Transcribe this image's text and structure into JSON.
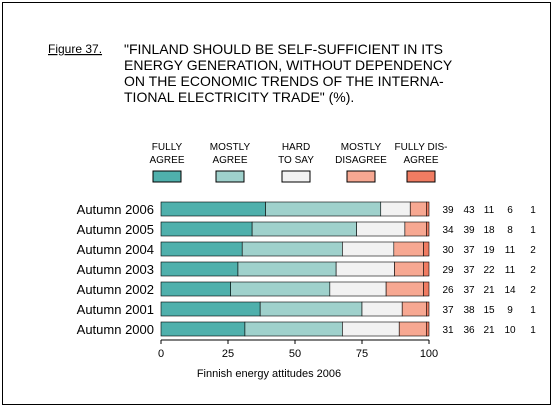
{
  "figure_label": "Figure 37.",
  "title_lines": [
    "\"FINLAND SHOULD BE SELF-SUFFICIENT IN ITS",
    "ENERGY GENERATION, WITHOUT DEPENDENCY",
    "ON THE ECONOMIC TRENDS OF THE INTERNA-",
    "TIONAL ELECTRICITY TRADE\" (%)."
  ],
  "colors": {
    "fully_agree": "#4fb0ac",
    "mostly_agree": "#9fd1cc",
    "hard_to_say": "#f2f2f2",
    "mostly_disagree": "#f7a892",
    "fully_disagree": "#f07c62"
  },
  "chart_data": {
    "type": "bar",
    "orientation": "horizontal",
    "stacked": true,
    "categories": [
      "Autumn 2006",
      "Autumn 2005",
      "Autumn 2004",
      "Autumn 2003",
      "Autumn 2002",
      "Autumn 2001",
      "Autumn 2000"
    ],
    "series": [
      {
        "name": "FULLY AGREE",
        "legend_lines": [
          "FULLY",
          "AGREE"
        ],
        "color_key": "fully_agree",
        "values": [
          39,
          34,
          30,
          29,
          26,
          37,
          31
        ]
      },
      {
        "name": "MOSTLY AGREE",
        "legend_lines": [
          "MOSTLY",
          "AGREE"
        ],
        "color_key": "mostly_agree",
        "values": [
          43,
          39,
          37,
          37,
          37,
          38,
          36
        ]
      },
      {
        "name": "HARD TO SAY",
        "legend_lines": [
          "HARD",
          "TO SAY"
        ],
        "color_key": "hard_to_say",
        "values": [
          11,
          18,
          19,
          22,
          21,
          15,
          21
        ]
      },
      {
        "name": "MOSTLY DISAGREE",
        "legend_lines": [
          "MOSTLY",
          "DISAGREE"
        ],
        "color_key": "mostly_disagree",
        "values": [
          6,
          8,
          11,
          11,
          14,
          9,
          10
        ]
      },
      {
        "name": "FULLY DISAGREE",
        "legend_lines": [
          "FULLY DIS-",
          "AGREE"
        ],
        "color_key": "fully_disagree",
        "values": [
          1,
          1,
          2,
          2,
          2,
          1,
          1
        ]
      }
    ],
    "xlim": [
      0,
      100
    ],
    "xticks": [
      0,
      25,
      50,
      75,
      100
    ],
    "xlabel": "Finnish energy attitudes 2006",
    "legend_position": "top"
  }
}
